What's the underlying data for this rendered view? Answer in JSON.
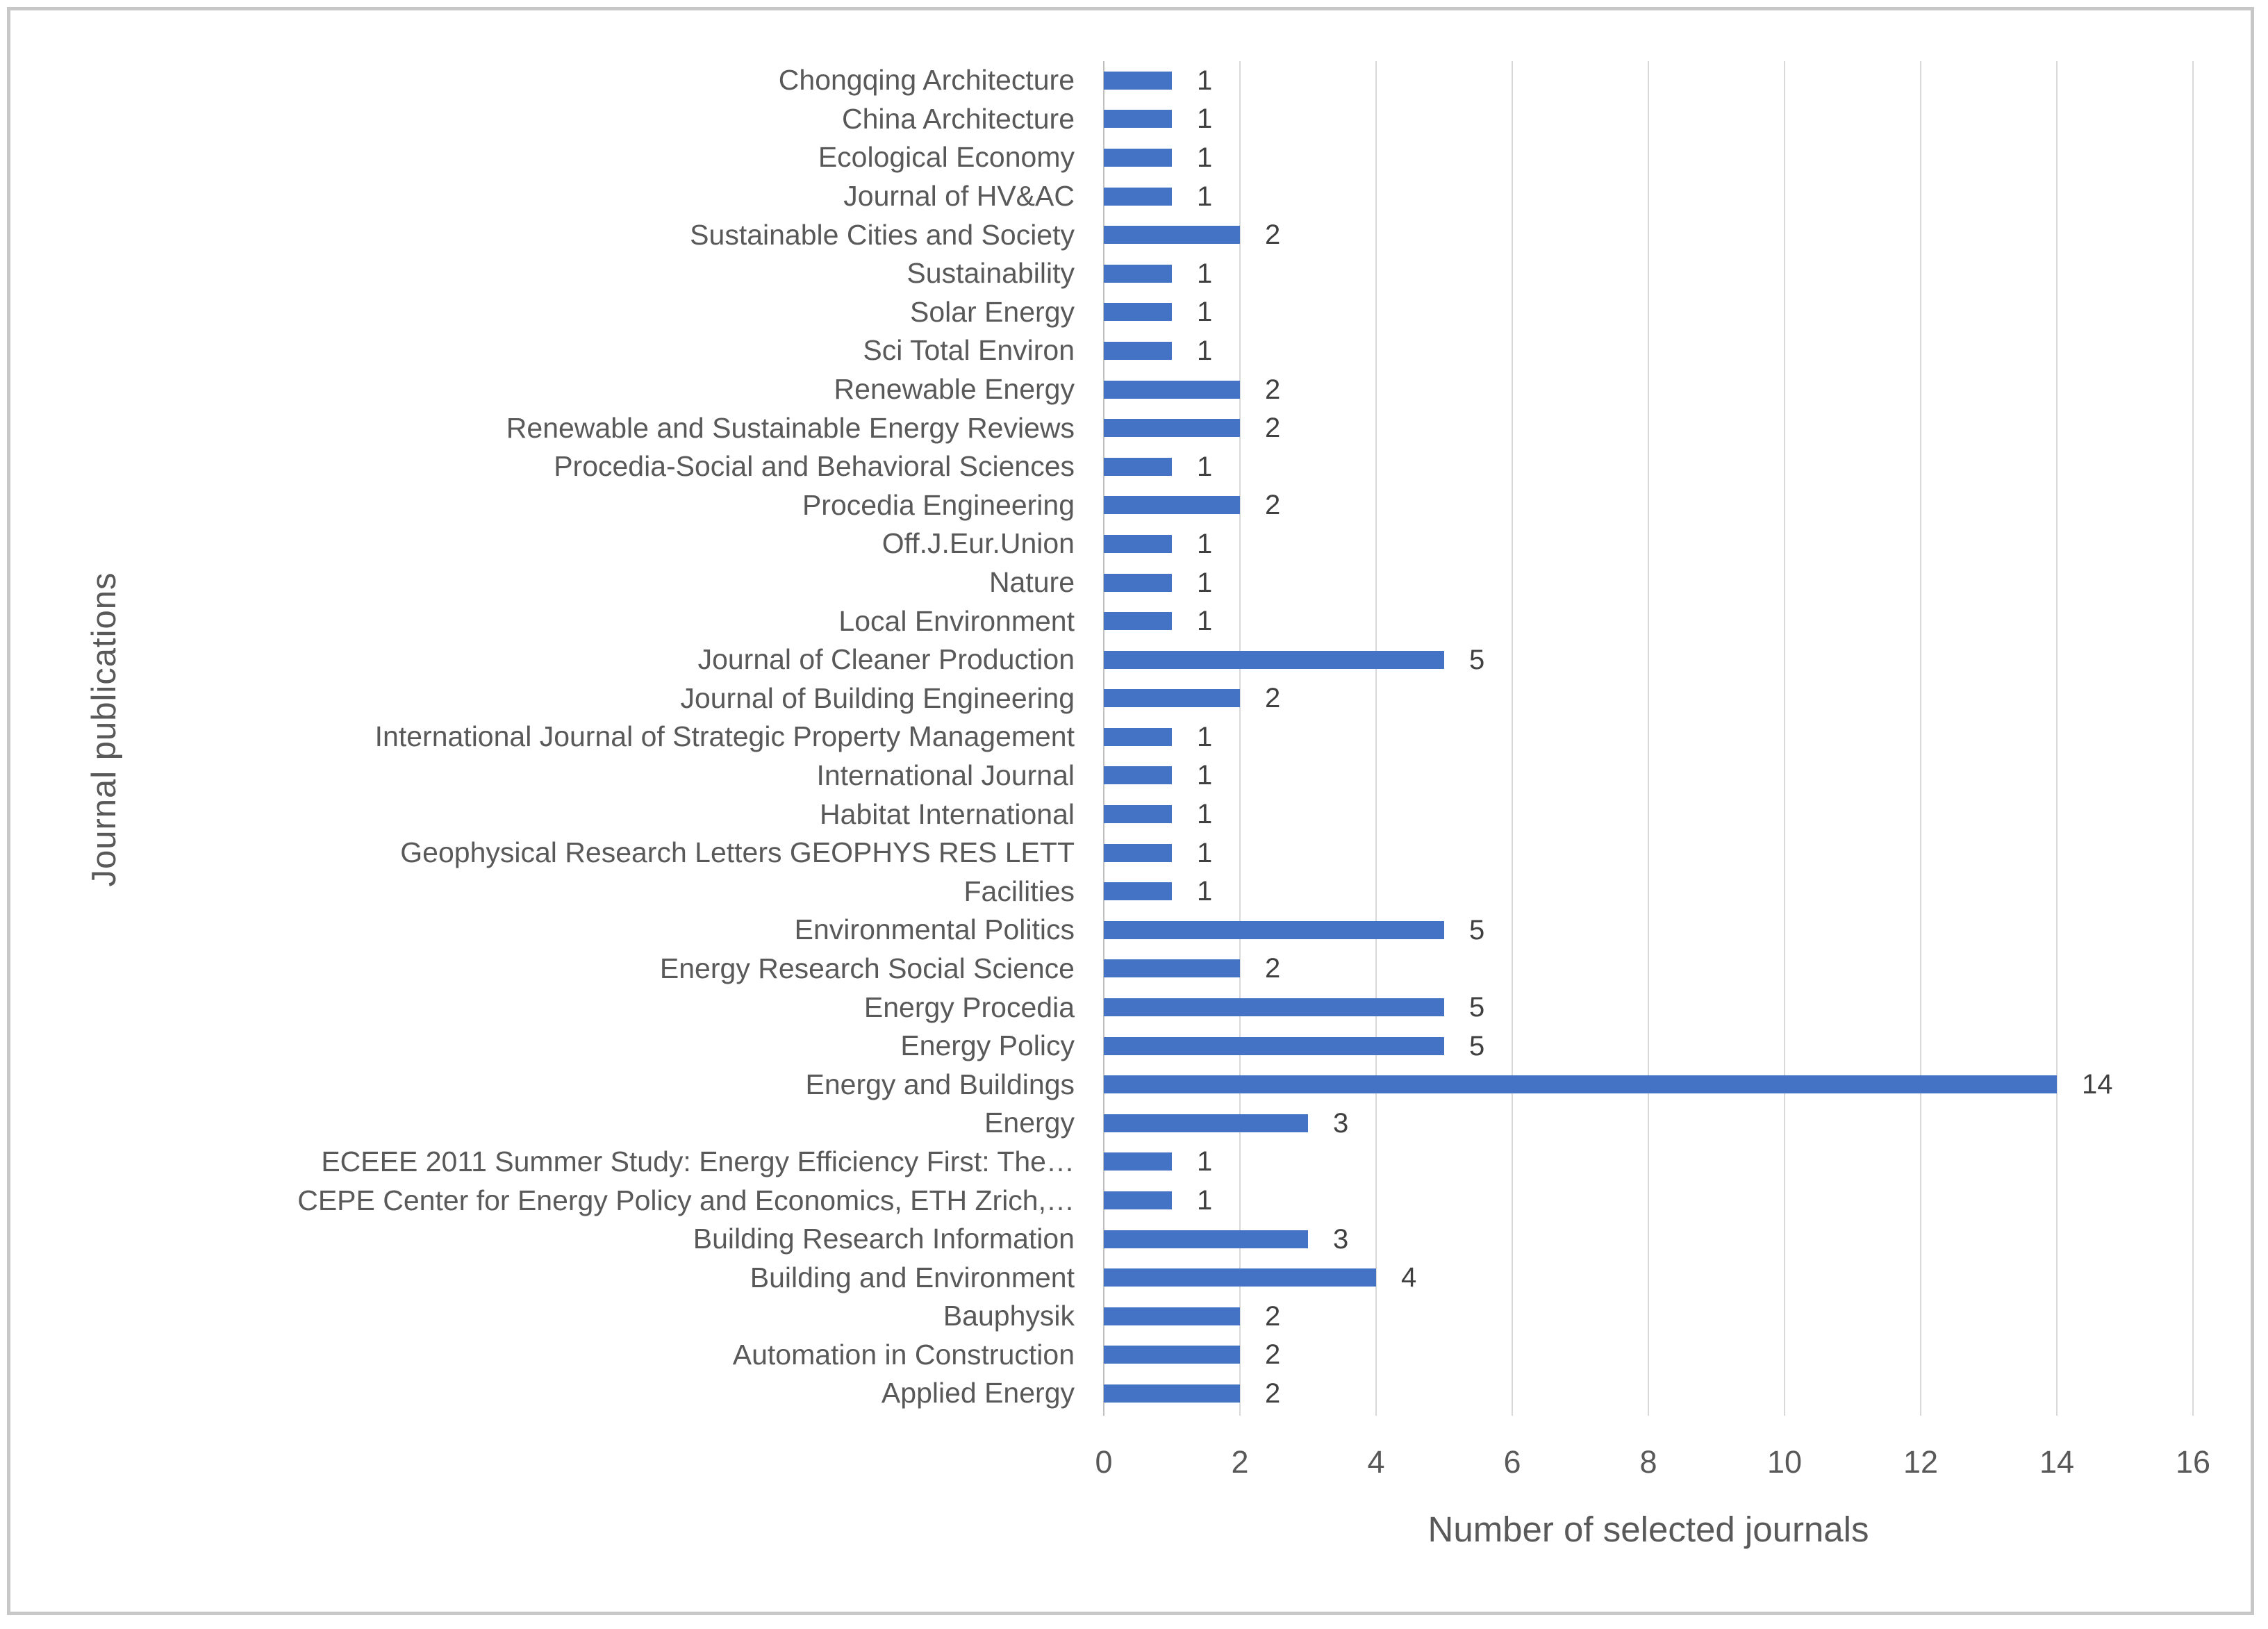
{
  "chart_data": {
    "type": "bar",
    "orientation": "horizontal",
    "title": "",
    "xlabel": "Number of selected journals",
    "ylabel": "Journal publications",
    "xlim": [
      0,
      16
    ],
    "xticks": [
      0,
      2,
      4,
      6,
      8,
      10,
      12,
      14,
      16
    ],
    "grid": "vertical",
    "legend": "none",
    "data_labels": true,
    "categories": [
      "Chongqing Architecture",
      "China Architecture",
      "Ecological Economy",
      "Journal of HV&AC",
      "Sustainable Cities and Society",
      "Sustainability",
      "Solar Energy",
      "Sci Total Environ",
      "Renewable Energy",
      "Renewable and Sustainable Energy Reviews",
      "Procedia-Social and Behavioral Sciences",
      "Procedia Engineering",
      "Off.J.Eur.Union",
      "Nature",
      "Local Environment",
      "Journal of Cleaner Production",
      "Journal of Building Engineering",
      "International Journal of Strategic Property Management",
      "International Journal",
      "Habitat International",
      "Geophysical Research Letters GEOPHYS RES LETT",
      "Facilities",
      "Environmental Politics",
      "Energy Research Social Science",
      "Energy Procedia",
      "Energy Policy",
      "Energy and Buildings",
      "Energy",
      "ECEEE 2011 Summer Study: Energy Efficiency First: The…",
      "CEPE Center for Energy Policy and Economics, ETH Zrich,…",
      "Building Research Information",
      "Building and Environment",
      "Bauphysik",
      "Automation in Construction",
      "Applied Energy"
    ],
    "values": [
      1,
      1,
      1,
      1,
      2,
      1,
      1,
      1,
      2,
      2,
      1,
      2,
      1,
      1,
      1,
      5,
      2,
      1,
      1,
      1,
      1,
      1,
      5,
      2,
      5,
      5,
      14,
      3,
      1,
      1,
      3,
      4,
      2,
      2,
      2
    ]
  },
  "colors": {
    "bar": "#4472C4",
    "gridline": "#D9D9D9",
    "axis_line": "#BFBFBF",
    "text": "#595959",
    "value_text": "#404040",
    "frame_border": "#C7C7C7"
  }
}
